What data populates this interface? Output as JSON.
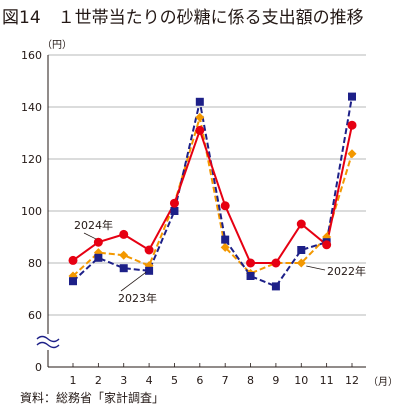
{
  "title": "図14　１世帯当たりの砂糖に係る支出額の推移",
  "source": "資料：総務省「家計調査」",
  "chart_data": {
    "type": "line",
    "y_unit": "（円）",
    "x_unit": "（月）",
    "categories": [
      "1",
      "2",
      "3",
      "4",
      "5",
      "6",
      "7",
      "8",
      "9",
      "10",
      "11",
      "12"
    ],
    "ylim": [
      60,
      160
    ],
    "y_ticks": [
      "160",
      "140",
      "120",
      "100",
      "80",
      "60",
      "0"
    ],
    "axis_break": true,
    "grid": "horizontal",
    "series": [
      {
        "name": "2024年",
        "color": "#e60012",
        "marker": "circle",
        "dash": "solid",
        "values": [
          81,
          88,
          91,
          85,
          103,
          131,
          102,
          80,
          80,
          95,
          87,
          133
        ]
      },
      {
        "name": "2023年",
        "color": "#1d2088",
        "marker": "square",
        "dash": "dashed",
        "values": [
          73,
          82,
          78,
          77,
          100,
          142,
          89,
          75,
          71,
          85,
          88,
          144
        ]
      },
      {
        "name": "2022年",
        "color": "#f39800",
        "marker": "diamond",
        "dash": "dashed",
        "values": [
          75,
          84,
          83,
          79,
          103,
          136,
          86,
          76,
          80,
          80,
          90,
          122
        ]
      }
    ],
    "annotations": [
      {
        "text": "2024年",
        "series": "2024年",
        "point": 1
      },
      {
        "text": "2023年",
        "series": "2023年",
        "point": 3
      },
      {
        "text": "2022年",
        "series": "2022年",
        "point": 9
      }
    ]
  }
}
